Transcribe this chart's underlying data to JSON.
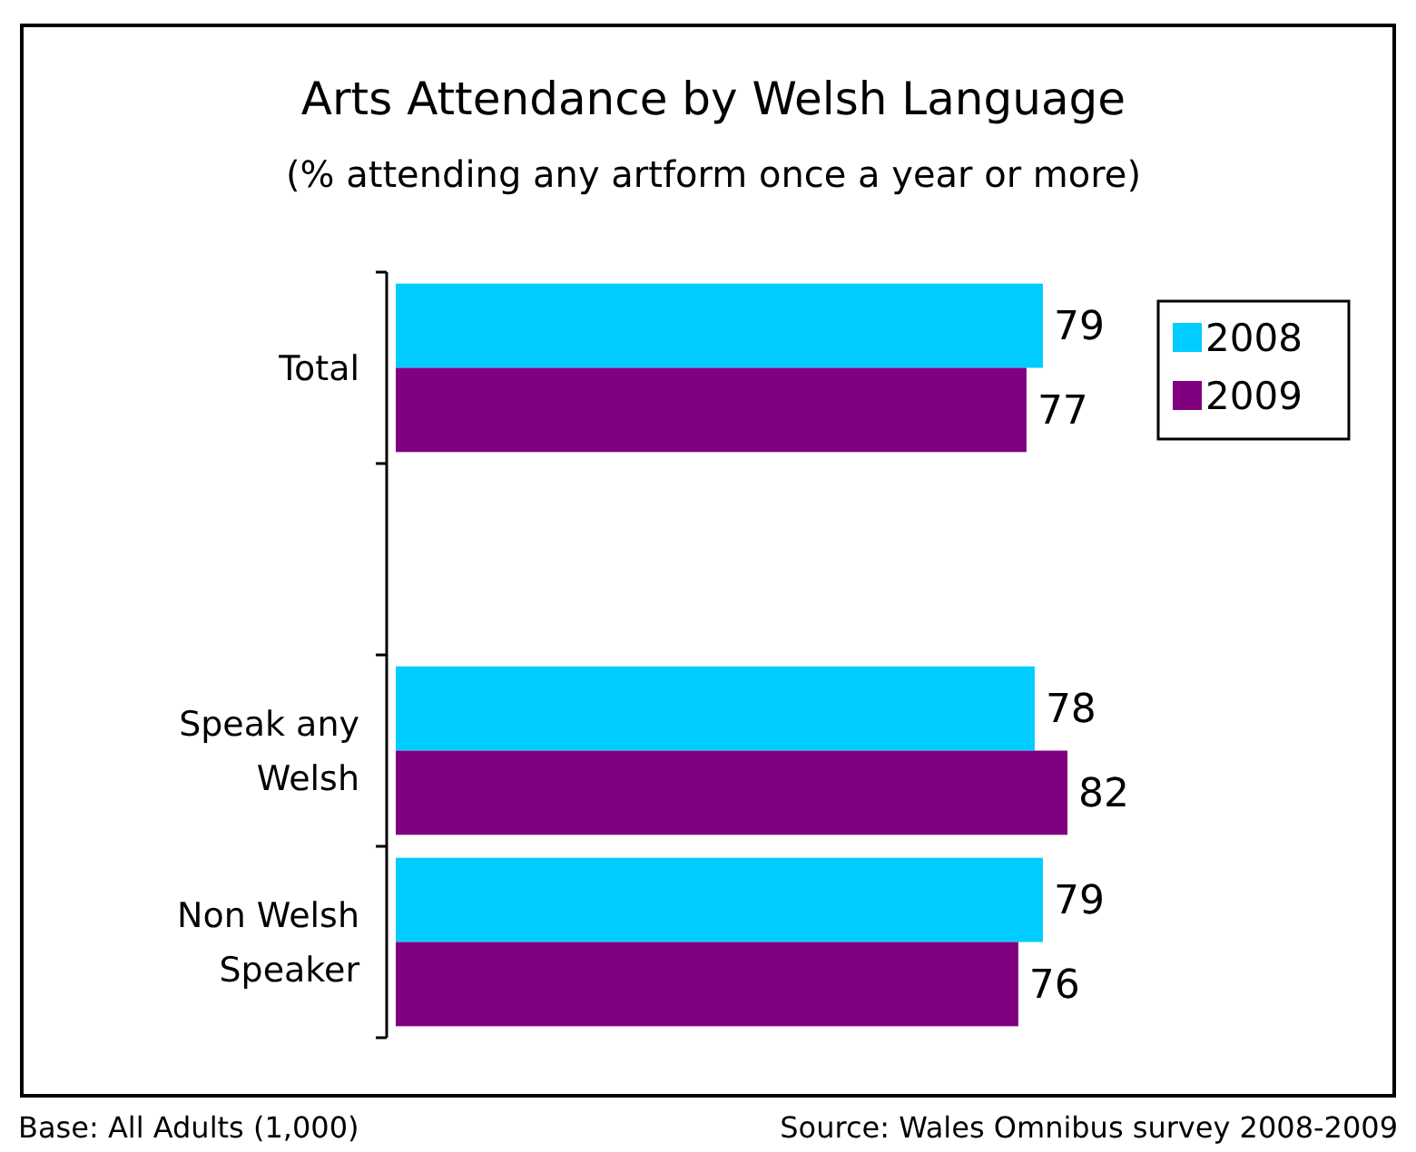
{
  "chart_data": {
    "type": "bar",
    "orientation": "horizontal",
    "title": "Arts Attendance by Welsh Language",
    "subtitle": "(% attending any artform once a year or more)",
    "categories": [
      "Total",
      null,
      "Speak any Welsh",
      "Non Welsh Speaker"
    ],
    "series": [
      {
        "name": "2008",
        "color": "#00ccff",
        "values": [
          79,
          null,
          78,
          79
        ]
      },
      {
        "name": "2009",
        "color": "#800080",
        "values": [
          77,
          null,
          82,
          76
        ]
      }
    ],
    "data_labels": true,
    "legend": "top right",
    "annotations": [
      "Base: All Adults (1,000)",
      "Source: Wales Omnibus survey 2008-2009"
    ]
  }
}
